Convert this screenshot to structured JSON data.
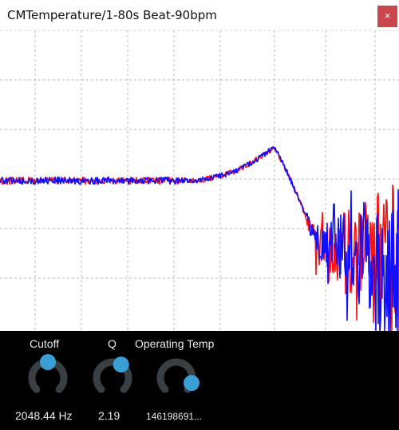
{
  "window": {
    "title": "CMTemperature/1-80s Beat-90bpm",
    "close_label": "×"
  },
  "colors": {
    "series_a": "#ff1010",
    "series_b": "#1010ff",
    "grid": "#c8c8c8",
    "knob_track": "#3a3f44",
    "knob_handle": "#3a9fd5",
    "panel_bg": "#000000",
    "plot_bg": "#ffffff",
    "close_bg": "#c9474d"
  },
  "knobs": [
    {
      "id": "cutoff",
      "label": "Cutoff",
      "value_text": "2048.44 Hz",
      "level": 0.5
    },
    {
      "id": "q",
      "label": "Q",
      "value_text": "2.19",
      "level": 0.62
    },
    {
      "id": "temp",
      "label": "Operating Temp",
      "value_text": "146198691...",
      "level": 0.9
    }
  ],
  "chart_data": {
    "type": "line",
    "title": "",
    "xlabel": "",
    "ylabel": "",
    "grid": true,
    "series": [
      {
        "color": "#ff1010"
      },
      {
        "color": "#1010ff"
      }
    ]
  }
}
